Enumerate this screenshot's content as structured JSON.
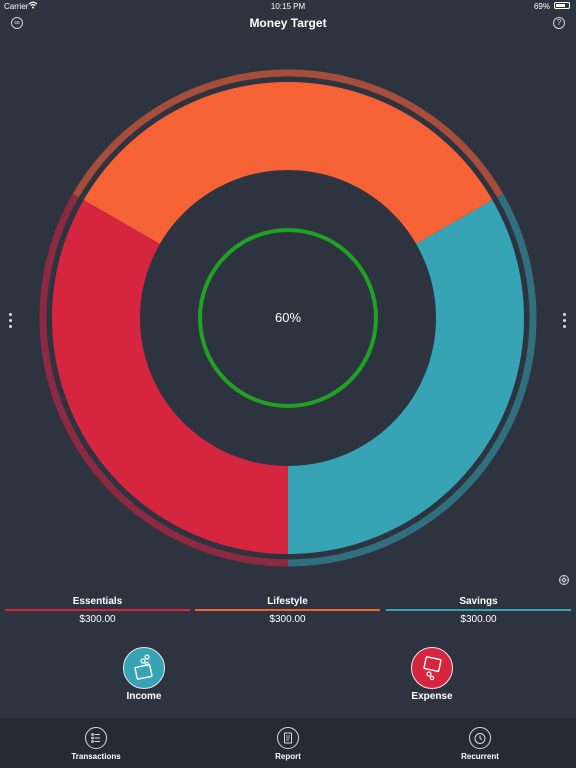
{
  "status_bar": {
    "carrier": "Carrier",
    "time": "10:15 PM",
    "battery_percent": "69%"
  },
  "nav": {
    "title": "Money Target",
    "left_icon": "infinity-icon",
    "right_icon": "help-icon",
    "help_glyph": "?",
    "infinity_glyph": "∞"
  },
  "chart_data": {
    "type": "pie",
    "center_label": "60%",
    "progress": 0.6,
    "slices": [
      {
        "name": "Lifestyle",
        "value": 300,
        "color": "#f46235"
      },
      {
        "name": "Savings",
        "value": 300,
        "color": "#36a4b4"
      },
      {
        "name": "Essentials",
        "value": 300,
        "color": "#d6253f"
      }
    ],
    "outer_ring": [
      {
        "name": "Lifestyle",
        "color": "#a64e3a"
      },
      {
        "name": "Savings",
        "color": "#2f6f7e"
      },
      {
        "name": "Essentials",
        "color": "#8d2a42"
      }
    ],
    "center_ring_color": "#1fa224"
  },
  "categories": [
    {
      "name": "Essentials",
      "amount": "$300.00",
      "color": "#d6253f"
    },
    {
      "name": "Lifestyle",
      "amount": "$300.00",
      "color": "#f46235"
    },
    {
      "name": "Savings",
      "amount": "$300.00",
      "color": "#36a4b4"
    }
  ],
  "actions": {
    "income": {
      "label": "Income",
      "color": "#36a4b4",
      "icon": "wallet-plus-icon"
    },
    "expense": {
      "label": "Expense",
      "color": "#d6253f",
      "icon": "wallet-minus-icon"
    }
  },
  "tabs": [
    {
      "label": "Transactions",
      "icon": "list-icon"
    },
    {
      "label": "Report",
      "icon": "report-icon"
    },
    {
      "label": "Recurrent",
      "icon": "timer-icon"
    }
  ]
}
